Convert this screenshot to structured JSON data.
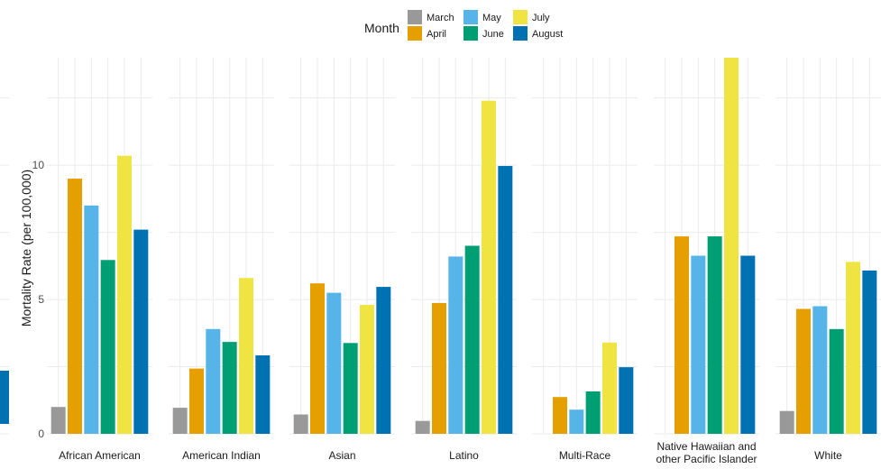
{
  "chart_data": {
    "type": "bar",
    "ylabel": "Mortality Rate (per 100,000)",
    "ylim": [
      0,
      14
    ],
    "yticks": [
      0,
      5,
      10
    ],
    "legend_title": "Month",
    "legend_position": "top",
    "grid": true,
    "categories": [
      "African American",
      "American Indian",
      "Asian",
      "Latino",
      "Multi-Race",
      "Native Hawaiian and other Pacific Islander",
      "White"
    ],
    "category_lines": [
      [
        "African American"
      ],
      [
        "American Indian"
      ],
      [
        "Asian"
      ],
      [
        "Latino"
      ],
      [
        "Multi-Race"
      ],
      [
        "Native Hawaiian and",
        "other Pacific Islander"
      ],
      [
        "White"
      ]
    ],
    "series": [
      {
        "name": "March",
        "color": "#999999",
        "values": [
          1.0,
          0.97,
          0.72,
          0.48,
          null,
          null,
          0.85
        ]
      },
      {
        "name": "April",
        "color": "#E69F00",
        "values": [
          9.5,
          2.43,
          5.6,
          4.87,
          1.37,
          7.35,
          4.65
        ]
      },
      {
        "name": "May",
        "color": "#56B4E9",
        "values": [
          8.5,
          3.9,
          5.25,
          6.6,
          0.9,
          6.63,
          4.75
        ]
      },
      {
        "name": "June",
        "color": "#009E73",
        "values": [
          6.47,
          3.42,
          3.38,
          7.0,
          1.58,
          7.35,
          3.9
        ]
      },
      {
        "name": "July",
        "color": "#F0E442",
        "values": [
          10.35,
          5.8,
          4.8,
          12.4,
          3.4,
          14.0,
          6.4
        ]
      },
      {
        "name": "August",
        "color": "#0072B2",
        "values": [
          7.6,
          2.92,
          5.47,
          9.97,
          2.48,
          6.63,
          6.08
        ]
      }
    ]
  }
}
